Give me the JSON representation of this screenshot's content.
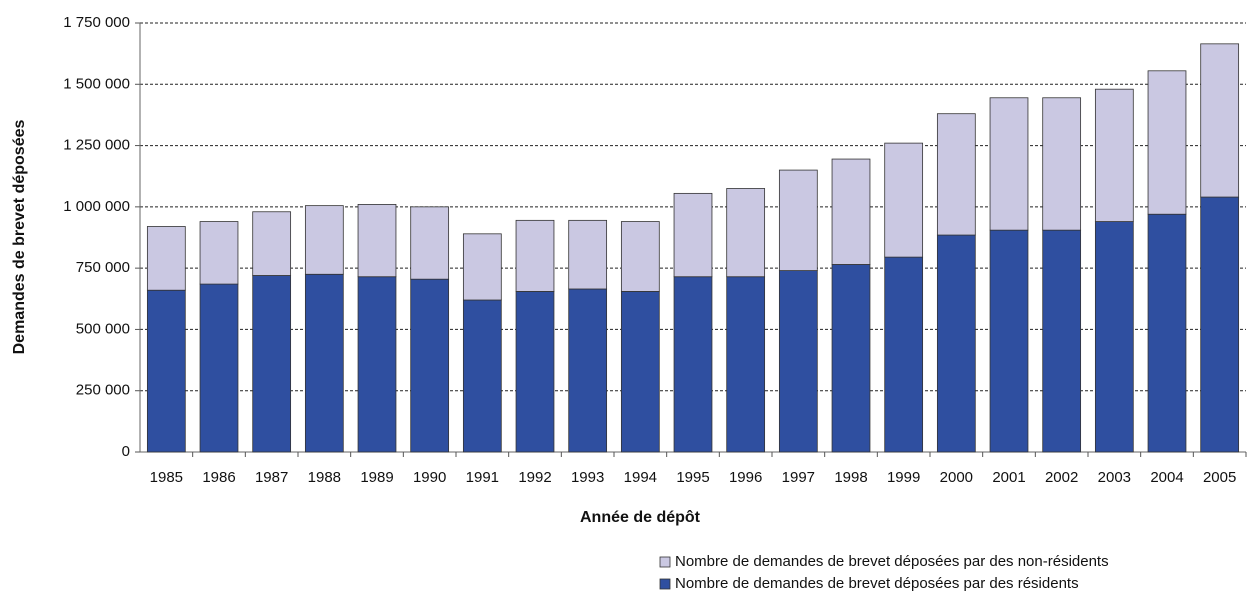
{
  "chart_data": {
    "type": "stacked_bar",
    "xlabel": "Année de dépôt",
    "ylabel": "Demandes de brevet déposées",
    "categories": [
      "1985",
      "1986",
      "1987",
      "1988",
      "1989",
      "1990",
      "1991",
      "1992",
      "1993",
      "1994",
      "1995",
      "1996",
      "1997",
      "1998",
      "1999",
      "2000",
      "2001",
      "2002",
      "2003",
      "2004",
      "2005"
    ],
    "series": [
      {
        "name": "Nombre de demandes de brevet déposées par des résidents",
        "color": "#2f4fa0",
        "values": [
          660000,
          685000,
          720000,
          725000,
          715000,
          705000,
          620000,
          655000,
          665000,
          655000,
          715000,
          715000,
          740000,
          765000,
          795000,
          885000,
          905000,
          905000,
          940000,
          970000,
          1040000
        ]
      },
      {
        "name": "Nombre de demandes de brevet déposées par des non-résidents",
        "color": "#cac8e2",
        "values": [
          260000,
          255000,
          260000,
          280000,
          295000,
          295000,
          270000,
          290000,
          280000,
          285000,
          340000,
          360000,
          410000,
          430000,
          465000,
          495000,
          540000,
          540000,
          540000,
          585000,
          625000
        ]
      }
    ],
    "ylim": [
      0,
      1750000
    ],
    "yticks": [
      0,
      {
        "value": 250000,
        "label": "250 000"
      },
      {
        "value": 500000,
        "label": "500 000"
      },
      {
        "value": 750000,
        "label": "750 000"
      },
      {
        "value": 1000000,
        "label": "1 000 000"
      },
      {
        "value": 1250000,
        "label": "1 250 000"
      },
      {
        "value": 1500000,
        "label": "1 500 000"
      },
      {
        "value": 1750000,
        "label": "1 750 000"
      }
    ],
    "grid": true,
    "legend": "bottom-right"
  }
}
